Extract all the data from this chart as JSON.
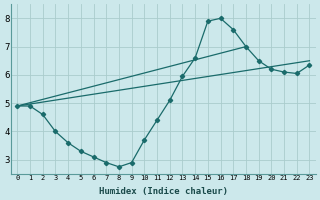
{
  "background_color": "#cce8eb",
  "grid_color": "#aacccc",
  "line_color": "#1a6b6b",
  "xlabel": "Humidex (Indice chaleur)",
  "xlim": [
    -0.5,
    23.5
  ],
  "ylim": [
    2.5,
    8.5
  ],
  "yticks": [
    3,
    4,
    5,
    6,
    7,
    8
  ],
  "xticks": [
    0,
    1,
    2,
    3,
    4,
    5,
    6,
    7,
    8,
    9,
    10,
    11,
    12,
    13,
    14,
    15,
    16,
    17,
    18,
    19,
    20,
    21,
    22,
    23
  ],
  "line1_x": [
    0,
    1,
    2,
    3,
    4,
    5,
    6,
    7,
    8,
    9,
    10,
    11,
    12,
    13,
    14,
    15,
    16,
    17,
    18,
    19,
    20,
    21,
    22,
    23
  ],
  "line1_y": [
    4.9,
    4.9,
    4.6,
    4.0,
    3.6,
    3.3,
    3.1,
    2.9,
    2.75,
    2.9,
    3.7,
    4.4,
    5.1,
    5.95,
    6.6,
    7.9,
    8.0,
    7.6,
    7.0,
    6.5,
    6.2,
    6.1,
    6.05,
    6.35
  ],
  "line2_x": [
    0,
    23
  ],
  "line2_y": [
    4.9,
    6.5
  ],
  "line3_x": [
    0,
    18
  ],
  "line3_y": [
    4.9,
    7.0
  ]
}
